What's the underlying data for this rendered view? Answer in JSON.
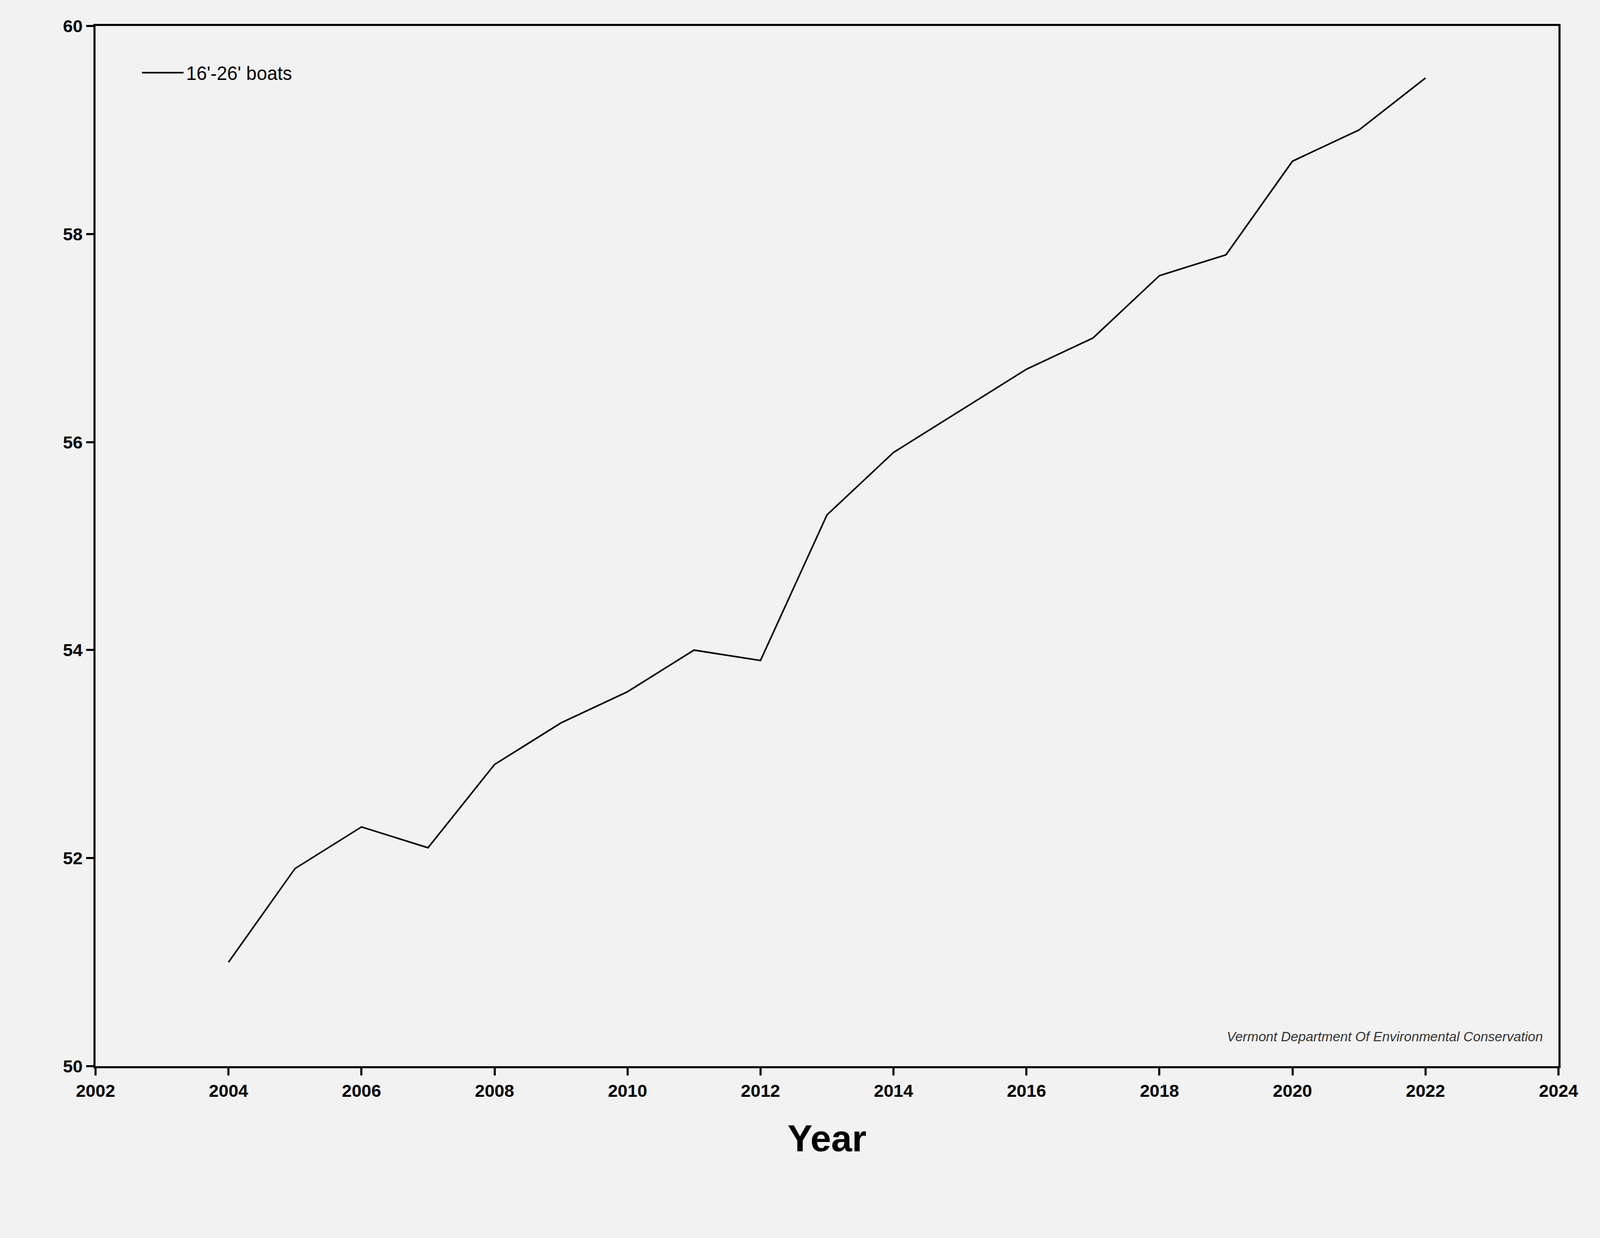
{
  "chart_data": {
    "type": "line",
    "x": [
      2004,
      2005,
      2006,
      2007,
      2008,
      2009,
      2010,
      2011,
      2012,
      2013,
      2014,
      2015,
      2016,
      2017,
      2018,
      2019,
      2020,
      2021,
      2022
    ],
    "series": [
      {
        "name": "16'-26' boats",
        "color": "#000000",
        "line_style": "solid",
        "values": [
          51.0,
          51.9,
          52.3,
          52.1,
          52.9,
          53.3,
          53.6,
          54.0,
          53.9,
          55.3,
          55.9,
          56.3,
          56.7,
          57.0,
          57.6,
          57.8,
          58.7,
          59.0,
          59.5
        ]
      }
    ],
    "xlabel": "Year",
    "xlim": [
      2002,
      2024
    ],
    "xticks": [
      2002,
      2004,
      2006,
      2008,
      2010,
      2012,
      2014,
      2016,
      2018,
      2020,
      2022,
      2024
    ],
    "ylim": [
      50,
      60
    ],
    "yticks": [
      50,
      52,
      54,
      56,
      58,
      60
    ],
    "grid": false,
    "legend": "upper left",
    "annotations": [
      {
        "text": "Vermont Department Of Environmental Conservation"
      }
    ]
  }
}
